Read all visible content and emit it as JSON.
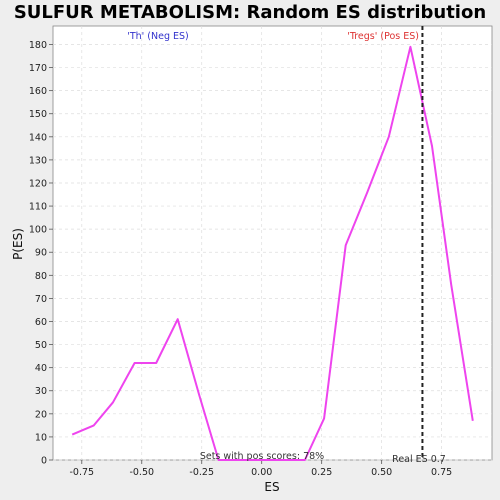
{
  "chart_data": {
    "type": "line",
    "title": "SULFUR METABOLISM: Random ES distribution",
    "xlabel": "ES",
    "ylabel": "P(ES)",
    "xlim": [
      -0.87,
      0.96
    ],
    "ylim": [
      0,
      188
    ],
    "x_ticks": [
      -0.75,
      -0.5,
      -0.25,
      0.0,
      0.25,
      0.5,
      0.75
    ],
    "x_tick_labels": [
      "-0.75",
      "-0.50",
      "-0.25",
      "0.00",
      "0.25",
      "0.50",
      "0.75"
    ],
    "y_ticks": [
      0,
      10,
      20,
      30,
      40,
      50,
      60,
      70,
      80,
      90,
      100,
      110,
      120,
      130,
      140,
      150,
      160,
      170,
      180
    ],
    "y_tick_labels": [
      "0",
      "10",
      "20",
      "30",
      "40",
      "50",
      "60",
      "70",
      "80",
      "90",
      "100",
      "110",
      "120",
      "130",
      "140",
      "150",
      "160",
      "170",
      "180"
    ],
    "grid": true,
    "series": [
      {
        "color": "#ee44ee",
        "x": [
          -0.79,
          -0.7,
          -0.62,
          -0.53,
          -0.44,
          -0.35,
          -0.26,
          -0.18,
          0.18,
          0.26,
          0.35,
          0.44,
          0.53,
          0.62,
          0.71,
          0.79,
          0.88
        ],
        "y": [
          11,
          15,
          25,
          42,
          42,
          61,
          28,
          0,
          0,
          18,
          93,
          116,
          140,
          179,
          136,
          76,
          17
        ]
      }
    ],
    "real_es": 0.67,
    "real_es_label": "Real ES 0.7",
    "neg_label": "'Th' (Neg ES)",
    "pos_label": "'Tregs' (Pos ES)",
    "pos_scores_label": "Sets with pos scores: 78%",
    "colors": {
      "neg_label": "#3333cc",
      "pos_label": "#dd3333",
      "real_es_line": "#222222",
      "grid": "#dddddd",
      "plot_bg": "#ffffff",
      "page_bg": "#eeeeee"
    }
  }
}
